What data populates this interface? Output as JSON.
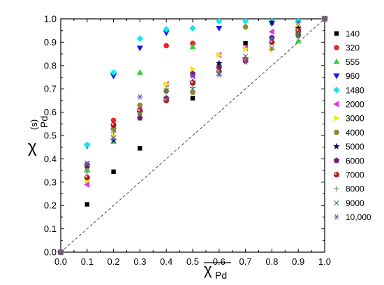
{
  "chart_data": {
    "type": "scatter",
    "ylabel": "χ",
    "ylabel_superscript": "(s)",
    "ylabel_subscript": "Pd",
    "xlabel": "χ",
    "xlabel_subscript": "Pd",
    "xlabel_overline": true,
    "xlim": [
      0.0,
      1.0
    ],
    "ylim": [
      0.0,
      1.0
    ],
    "xticks": [
      "0.0",
      "0.1",
      "0.2",
      "0.3",
      "0.4",
      "0.5",
      "0.6",
      "0.7",
      "0.8",
      "0.9",
      "1.0"
    ],
    "yticks": [
      "0.0",
      "0.1",
      "0.2",
      "0.3",
      "0.4",
      "0.5",
      "0.6",
      "0.7",
      "0.8",
      "0.9",
      "1.0"
    ],
    "x": [
      0.0,
      0.1,
      0.2,
      0.3,
      0.4,
      0.5,
      0.6,
      0.7,
      0.8,
      0.9,
      1.0
    ],
    "reference_line": "y = x (dashed)",
    "legend_position": "right",
    "series": [
      {
        "name": "140",
        "marker": "square",
        "color": "#000000",
        "values": [
          0.0,
          0.205,
          0.345,
          0.445,
          null,
          0.66,
          null,
          0.895,
          null,
          null,
          1.0
        ]
      },
      {
        "name": "320",
        "marker": "circle",
        "color": "#e8232a",
        "values": [
          0.0,
          null,
          0.565,
          null,
          0.885,
          0.895,
          null,
          null,
          null,
          null,
          1.0
        ]
      },
      {
        "name": "555",
        "marker": "triangle-up",
        "color": "#3ecc3e",
        "values": [
          0.0,
          0.355,
          0.475,
          0.77,
          null,
          0.88,
          null,
          null,
          null,
          0.905,
          1.0
        ]
      },
      {
        "name": "960",
        "marker": "triangle-down",
        "color": "#1a1ae6",
        "values": [
          0.0,
          0.455,
          0.755,
          0.875,
          0.94,
          null,
          0.96,
          null,
          0.98,
          null,
          1.0
        ]
      },
      {
        "name": "1480",
        "marker": "diamond",
        "color": "#19e6f0",
        "values": [
          0.0,
          0.46,
          0.77,
          0.915,
          0.955,
          0.96,
          0.99,
          0.99,
          0.99,
          0.99,
          1.0
        ]
      },
      {
        "name": "2000",
        "marker": "triangle-left",
        "color": "#e632e6",
        "values": [
          0.0,
          0.29,
          0.525,
          0.615,
          0.72,
          0.755,
          0.845,
          0.875,
          0.945,
          0.96,
          1.0
        ]
      },
      {
        "name": "3000",
        "marker": "triangle-right",
        "color": "#f5e61e",
        "values": [
          0.0,
          0.305,
          0.5,
          0.59,
          0.72,
          0.785,
          0.845,
          0.87,
          0.87,
          0.97,
          1.0
        ]
      },
      {
        "name": "4000",
        "marker": "hexagon",
        "color": "#8c8c32",
        "values": [
          0.0,
          0.365,
          0.53,
          0.63,
          0.69,
          0.685,
          0.8,
          0.965,
          0.9,
          0.94,
          1.0
        ]
      },
      {
        "name": "5000",
        "marker": "star",
        "color": "#0a0a5a",
        "values": [
          0.0,
          0.37,
          0.48,
          0.6,
          0.66,
          0.73,
          0.81,
          0.83,
          0.985,
          0.96,
          1.0
        ]
      },
      {
        "name": "6000",
        "marker": "pentagon",
        "color": "#6e1e7a",
        "values": [
          0.0,
          0.375,
          0.545,
          0.575,
          0.66,
          0.765,
          0.79,
          0.825,
          0.92,
          0.93,
          1.0
        ]
      },
      {
        "name": "7000",
        "marker": "sphere",
        "color": "#b01818",
        "values": [
          0.0,
          0.32,
          0.545,
          0.605,
          0.65,
          0.725,
          0.775,
          0.82,
          0.9,
          0.95,
          1.0
        ]
      },
      {
        "name": "8000",
        "marker": "plus",
        "color": "#6a8c6a",
        "values": [
          0.0,
          0.34,
          0.515,
          0.6,
          0.7,
          0.705,
          0.77,
          0.825,
          0.87,
          0.925,
          1.0
        ]
      },
      {
        "name": "9000",
        "marker": "cross",
        "color": "#5a7a7a",
        "values": [
          0.0,
          0.38,
          0.49,
          0.59,
          0.655,
          0.7,
          0.765,
          0.84,
          0.875,
          0.94,
          1.0
        ]
      },
      {
        "name": "10,000",
        "marker": "asterisk",
        "color": "#5a5ab4",
        "values": [
          0.0,
          0.38,
          0.485,
          0.665,
          0.69,
          0.755,
          0.76,
          0.815,
          0.915,
          0.985,
          1.0
        ]
      }
    ]
  }
}
